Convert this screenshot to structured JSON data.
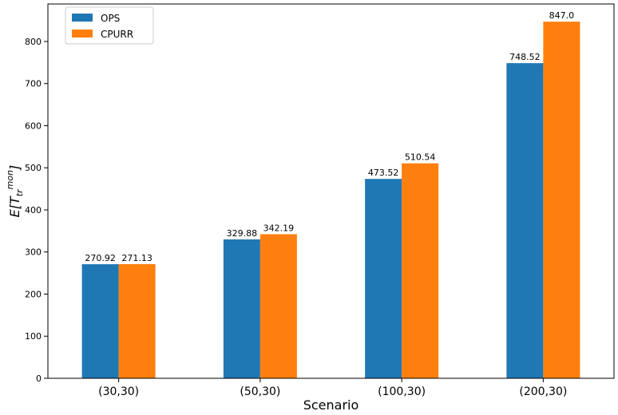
{
  "chart_data": {
    "type": "bar",
    "categories": [
      "(30,30)",
      "(50,30)",
      "(100,30)",
      "(200,30)"
    ],
    "series": [
      {
        "name": "OPS",
        "color": "#1f77b4",
        "values": [
          270.92,
          329.88,
          473.52,
          748.52
        ],
        "labels": [
          "270.92",
          "329.88",
          "473.52",
          "748.52"
        ]
      },
      {
        "name": "CPURR",
        "color": "#ff7f0e",
        "values": [
          271.13,
          342.19,
          510.54,
          847.0
        ],
        "labels": [
          "271.13",
          "342.19",
          "510.54",
          "847.0"
        ]
      }
    ],
    "xlabel": "Scenario",
    "ylabel": {
      "base": "E[T",
      "sup": "mon",
      "sub": "tr",
      "close": "]"
    },
    "ylim": [
      0,
      889
    ],
    "yticks": [
      0,
      100,
      200,
      300,
      400,
      500,
      600,
      700,
      800
    ],
    "grid": false,
    "legend_position": "upper-left"
  }
}
